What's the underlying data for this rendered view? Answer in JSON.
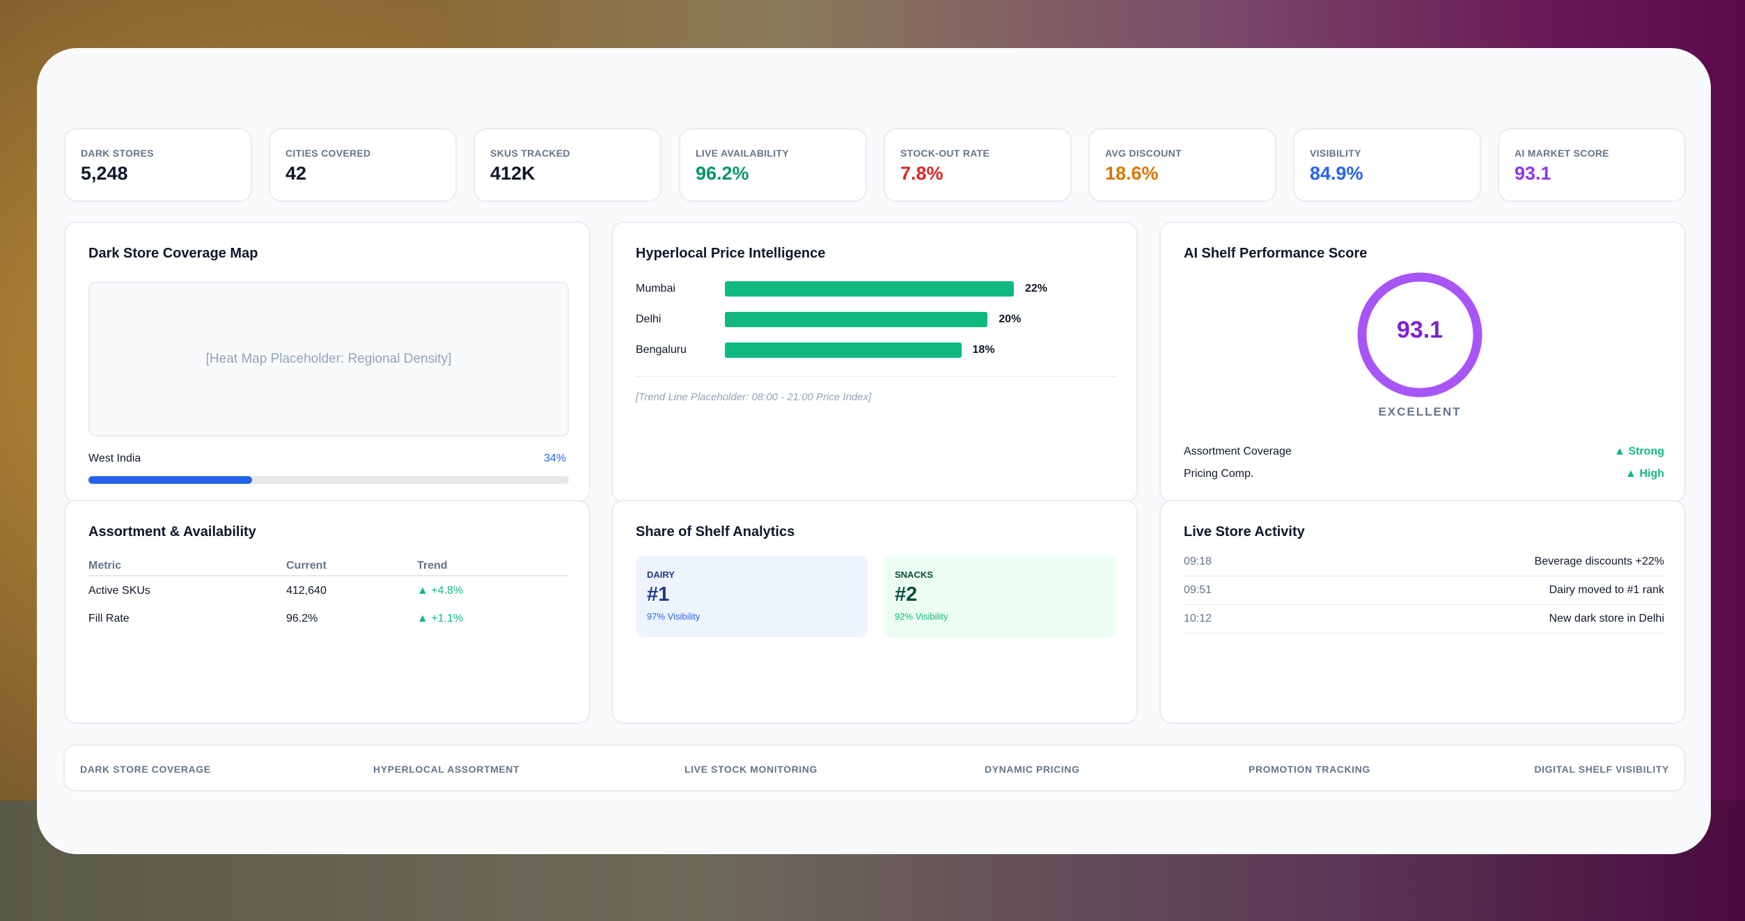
{
  "kpis": [
    {
      "label": "DARK STORES",
      "value": "5,248",
      "color": "#0f172a"
    },
    {
      "label": "CITIES COVERED",
      "value": "42",
      "color": "#0f172a"
    },
    {
      "label": "SKUS TRACKED",
      "value": "412K",
      "color": "#0f172a"
    },
    {
      "label": "LIVE AVAILABILITY",
      "value": "96.2%",
      "color": "#059669"
    },
    {
      "label": "STOCK-OUT RATE",
      "value": "7.8%",
      "color": "#dc2626"
    },
    {
      "label": "AVG DISCOUNT",
      "value": "18.6%",
      "color": "#d97706"
    },
    {
      "label": "VISIBILITY",
      "value": "84.9%",
      "color": "#2563eb"
    },
    {
      "label": "AI MARKET SCORE",
      "value": "93.1",
      "color": "#9333ea"
    }
  ],
  "coverage": {
    "title": "Dark Store Coverage Map",
    "placeholder": "[Heat Map Placeholder: Regional Density]",
    "region": "West India",
    "region_value": "34%",
    "region_fraction": 0.34
  },
  "price": {
    "title": "Hyperlocal Price Intelligence",
    "rows": [
      {
        "city": "Mumbai",
        "value": "22%",
        "pct": 22
      },
      {
        "city": "Delhi",
        "value": "20%",
        "pct": 20
      },
      {
        "city": "Bengaluru",
        "value": "18%",
        "pct": 18
      }
    ],
    "trend_placeholder": "[Trend Line Placeholder: 08:00 - 21:00 Price Index]"
  },
  "score": {
    "title": "AI Shelf Performance Score",
    "value": "93.1",
    "label": "EXCELLENT",
    "metrics": [
      {
        "name": "Assortment Coverage",
        "value": "▲ Strong"
      },
      {
        "name": "Pricing Comp.",
        "value": "▲ High"
      }
    ]
  },
  "assortment": {
    "title": "Assortment & Availability",
    "headers": [
      "Metric",
      "Current",
      "Trend"
    ],
    "rows": [
      [
        "Active SKUs",
        "412,640",
        "▲ +4.8%"
      ],
      [
        "Fill Rate",
        "96.2%",
        "▲ +1.1%"
      ]
    ]
  },
  "shelf": {
    "title": "Share of Shelf Analytics",
    "items": [
      {
        "category": "DAIRY",
        "rank": "#1",
        "visibility": "97% Visibility"
      },
      {
        "category": "SNACKS",
        "rank": "#2",
        "visibility": "92% Visibility"
      }
    ]
  },
  "activity": {
    "title": "Live Store Activity",
    "items": [
      {
        "time": "09:18",
        "text": "Beverage discounts +22%"
      },
      {
        "time": "09:51",
        "text": "Dairy moved to #1 rank"
      },
      {
        "time": "10:12",
        "text": "New dark store in Delhi"
      }
    ]
  },
  "footer": [
    "DARK STORE COVERAGE",
    "HYPERLOCAL ASSORTMENT",
    "LIVE STOCK MONITORING",
    "DYNAMIC PRICING",
    "PROMOTION TRACKING",
    "DIGITAL SHELF VISIBILITY"
  ]
}
